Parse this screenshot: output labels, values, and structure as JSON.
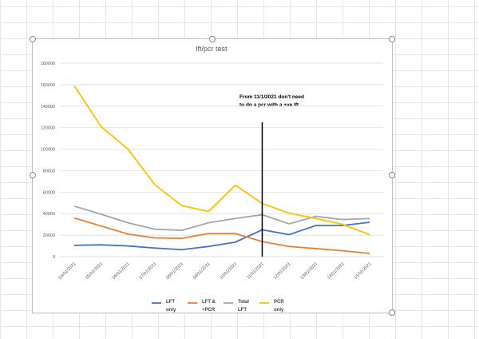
{
  "chart_data": {
    "type": "line",
    "title": "lft/pcr test",
    "categories": [
      "04/01/2021",
      "05/01/2021",
      "06/01/2021",
      "07/01/2021",
      "08/01/2021",
      "09/01/2021",
      "10/01/2021",
      "11/01/2021",
      "12/01/2021",
      "13/01/2021",
      "14/01/2021",
      "15/01/2021"
    ],
    "ylim": [
      0,
      180000
    ],
    "yticks": [
      0,
      20000,
      40000,
      60000,
      80000,
      100000,
      120000,
      140000,
      160000,
      180000
    ],
    "grid": true,
    "legend_position": "bottom",
    "series": [
      {
        "name": "LFT only",
        "color": "#4472c4",
        "values": [
          10500,
          11000,
          10000,
          8000,
          6500,
          9500,
          13500,
          25000,
          20500,
          29000,
          29000,
          32000
        ]
      },
      {
        "name": "LFT & +PCR",
        "color": "#ed7d31",
        "values": [
          36000,
          28500,
          21000,
          17500,
          17000,
          21500,
          21500,
          14000,
          9500,
          7500,
          5500,
          3000
        ]
      },
      {
        "name": "Total LFT",
        "color": "#a5a5a5",
        "values": [
          47000,
          39500,
          31500,
          25500,
          24500,
          31500,
          35500,
          39000,
          30500,
          37500,
          34500,
          35500
        ]
      },
      {
        "name": "PCR only",
        "color": "#ffc000",
        "values": [
          159000,
          121000,
          100000,
          67000,
          47500,
          42000,
          66500,
          49500,
          40500,
          35500,
          30000,
          20500
        ]
      }
    ],
    "annotation": {
      "lines": [
        "From 11/1/2021 don't need",
        "to do a pcr with a +ve lft"
      ],
      "at": "11/01/2021"
    }
  }
}
